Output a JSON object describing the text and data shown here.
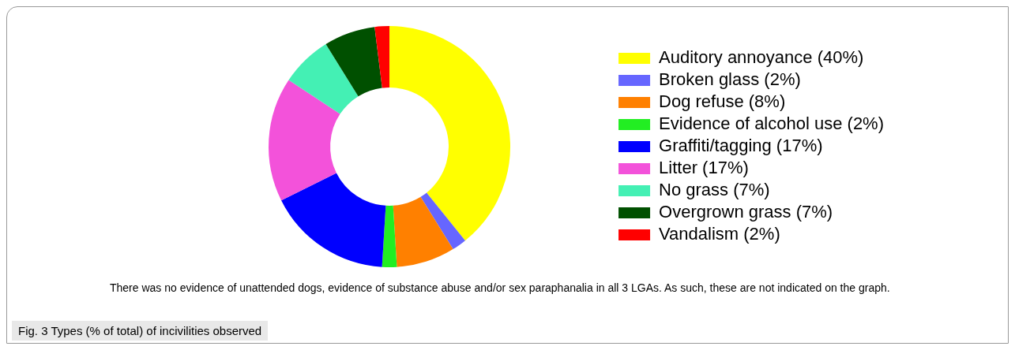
{
  "chart_data": {
    "type": "donut",
    "title": "Fig. 3 Types (% of total) of incivilities observed",
    "categories": [
      "Auditory annoyance (40%)",
      "Broken glass (2%)",
      "Dog refuse (8%)",
      "Evidence of alcohol use (2%)",
      "Graffiti/tagging (17%)",
      "Litter (17%)",
      "No grass (7%)",
      "Overgrown grass (7%)",
      "Vandalism (2%)"
    ],
    "values": [
      40,
      2,
      8,
      2,
      17,
      17,
      7,
      7,
      2
    ],
    "colors": [
      "#ffff00",
      "#6666ff",
      "#ff8000",
      "#22ee22",
      "#0000ff",
      "#f352da",
      "#44f0b4",
      "#005000",
      "#ff0000"
    ],
    "legend": "right",
    "annotations": [
      "There was no evidence of unattended dogs, evidence of substance abuse and/or sex paraphanalia in all 3 LGAs. As such, these are not indicated on the graph."
    ]
  }
}
